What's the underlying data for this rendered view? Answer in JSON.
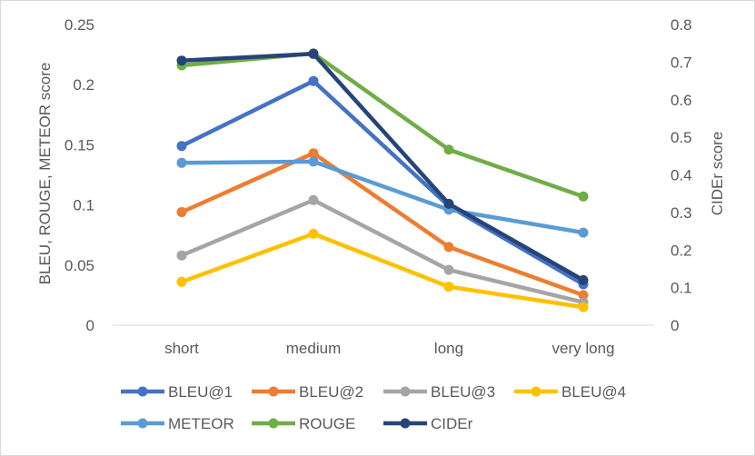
{
  "chart_data": {
    "type": "line",
    "categories": [
      "short",
      "medium",
      "long",
      "very long"
    ],
    "y_left": {
      "label": "BLEU, ROUGE, METEOR score",
      "range": [
        0,
        0.25
      ],
      "ticks": [
        "0",
        "0.05",
        "0.1",
        "0.15",
        "0.2",
        "0.25"
      ]
    },
    "y_right": {
      "label": "CIDEr score",
      "range": [
        0,
        0.8
      ],
      "ticks": [
        "0",
        "0.1",
        "0.2",
        "0.3",
        "0.4",
        "0.5",
        "0.6",
        "0.7",
        "0.8"
      ]
    },
    "grid": false,
    "legend_position": "bottom",
    "series": [
      {
        "name": "BLEU@1",
        "axis": "left",
        "color": "#4472C4",
        "values": [
          0.149,
          0.203,
          0.099,
          0.034
        ]
      },
      {
        "name": "BLEU@2",
        "axis": "left",
        "color": "#ED7D31",
        "values": [
          0.094,
          0.143,
          0.065,
          0.025
        ]
      },
      {
        "name": "BLEU@3",
        "axis": "left",
        "color": "#A5A5A5",
        "values": [
          0.058,
          0.104,
          0.046,
          0.019
        ]
      },
      {
        "name": "BLEU@4",
        "axis": "left",
        "color": "#FFC000",
        "values": [
          0.036,
          0.076,
          0.032,
          0.015
        ]
      },
      {
        "name": "METEOR",
        "axis": "left",
        "color": "#5B9BD5",
        "values": [
          0.135,
          0.136,
          0.096,
          0.077
        ]
      },
      {
        "name": "ROUGE",
        "axis": "left",
        "color": "#70AD47",
        "values": [
          0.216,
          0.226,
          0.146,
          0.107
        ]
      },
      {
        "name": "CIDEr",
        "axis": "right",
        "color": "#264478",
        "values": [
          0.704,
          0.722,
          0.323,
          0.12
        ]
      }
    ]
  }
}
